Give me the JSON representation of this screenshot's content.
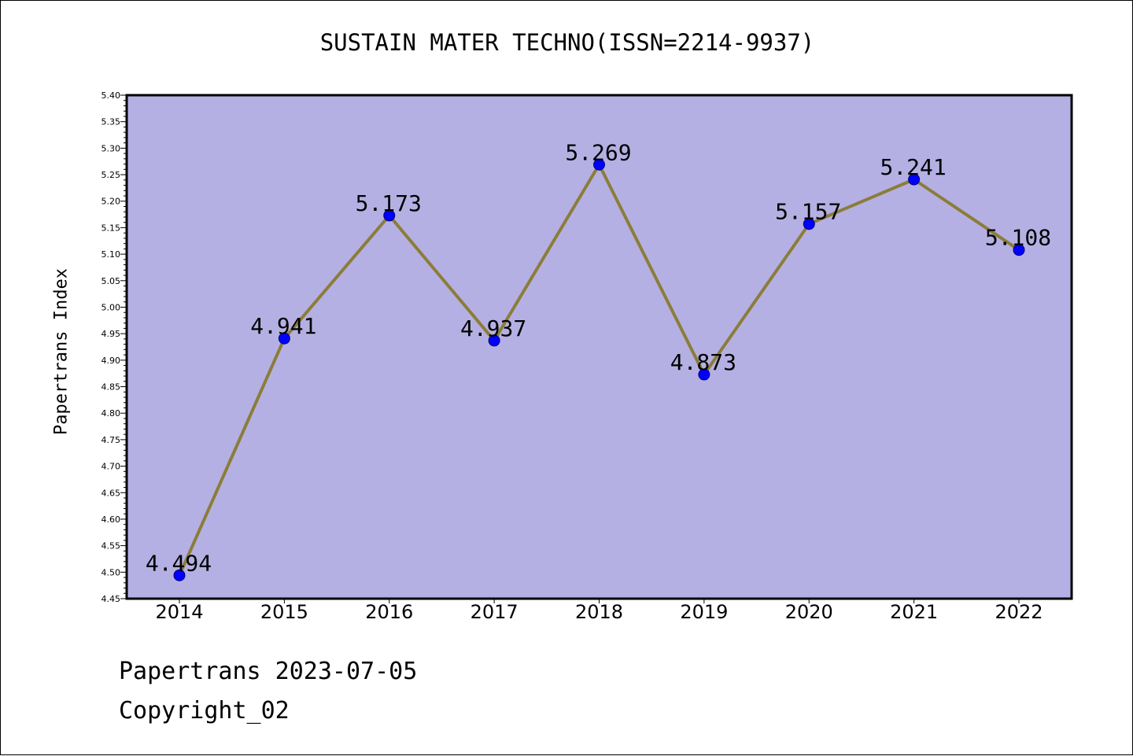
{
  "chart_data": {
    "type": "line",
    "title": "SUSTAIN MATER TECHNO(ISSN=2214-9937)",
    "xlabel": "",
    "ylabel": "Papertrans Index",
    "x": [
      "2014",
      "2015",
      "2016",
      "2017",
      "2018",
      "2019",
      "2020",
      "2021",
      "2022"
    ],
    "series": [
      {
        "values": [
          4.494,
          4.941,
          5.173,
          4.937,
          5.269,
          4.873,
          5.157,
          5.241,
          5.108
        ],
        "data_labels": [
          "4.494",
          "4.941",
          "5.173",
          "4.937",
          "5.269",
          "4.873",
          "5.157",
          "5.241",
          "5.108"
        ],
        "line_color": "#8b7d3a",
        "marker_color": "#0000ff"
      }
    ],
    "ylim": [
      4.45,
      5.4
    ],
    "yticks": [
      "4.45",
      "4.50",
      "4.55",
      "4.60",
      "4.65",
      "4.70",
      "4.75",
      "4.80",
      "4.85",
      "4.90",
      "4.95",
      "5.00",
      "5.05",
      "5.10",
      "5.15",
      "5.20",
      "5.25",
      "5.30",
      "5.35",
      "5.40"
    ],
    "grid": false,
    "plot_background": "#b5b0e3"
  },
  "footer": {
    "line1": "Papertrans 2023-07-05",
    "line2": "Copyright_02"
  }
}
